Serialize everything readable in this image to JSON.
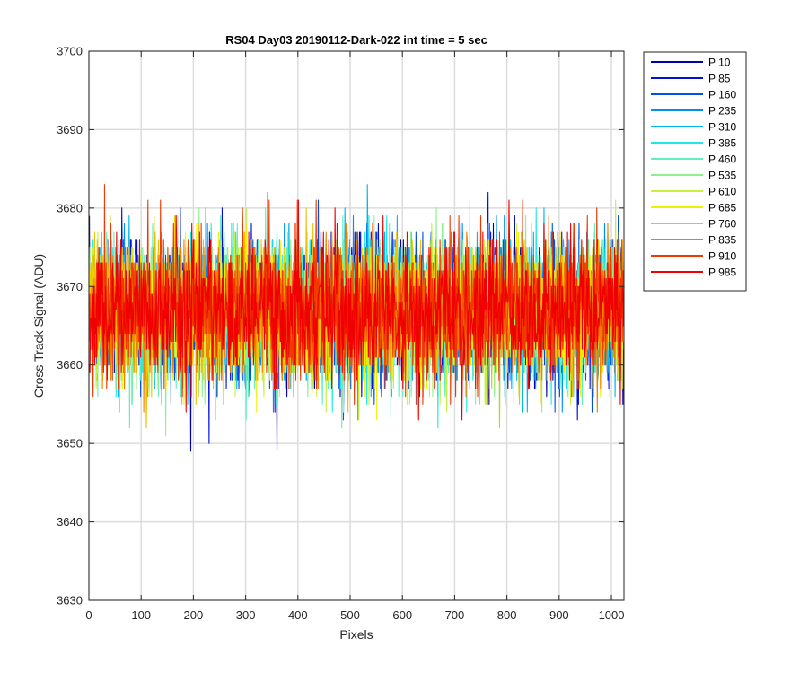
{
  "chart_data": {
    "type": "line",
    "title": "RS04 Day03 20190112-Dark-022 int time = 5 sec",
    "xlabel": "Pixels",
    "ylabel": "Cross Track Signal (ADU)",
    "xlim": [
      0,
      1024
    ],
    "ylim": [
      3630,
      3700
    ],
    "xticks": [
      "0",
      "100",
      "200",
      "300",
      "400",
      "500",
      "600",
      "700",
      "800",
      "900",
      "1000"
    ],
    "yticks": [
      "3630",
      "3640",
      "3650",
      "3660",
      "3670",
      "3680",
      "3690",
      "3700"
    ],
    "grid": true,
    "legend_position": "outside-right-top",
    "series": [
      {
        "name": "P 10",
        "color": "#0000a8",
        "mean": 3667,
        "spread": 7
      },
      {
        "name": "P 85",
        "color": "#0010d8",
        "mean": 3667,
        "spread": 7
      },
      {
        "name": "P 160",
        "color": "#0050e8",
        "mean": 3667,
        "spread": 7
      },
      {
        "name": "P 235",
        "color": "#0090f0",
        "mean": 3667,
        "spread": 7
      },
      {
        "name": "P 310",
        "color": "#00b8f0",
        "mean": 3667,
        "spread": 7
      },
      {
        "name": "P 385",
        "color": "#20e8e8",
        "mean": 3667,
        "spread": 7
      },
      {
        "name": "P 460",
        "color": "#60f0c0",
        "mean": 3667,
        "spread": 7
      },
      {
        "name": "P 535",
        "color": "#90f090",
        "mean": 3667,
        "spread": 7
      },
      {
        "name": "P 610",
        "color": "#c8f040",
        "mean": 3667,
        "spread": 7
      },
      {
        "name": "P 685",
        "color": "#f0f000",
        "mean": 3667,
        "spread": 7
      },
      {
        "name": "P 760",
        "color": "#f0c000",
        "mean": 3667,
        "spread": 7
      },
      {
        "name": "P 835",
        "color": "#f08000",
        "mean": 3667,
        "spread": 7
      },
      {
        "name": "P 910",
        "color": "#f03800",
        "mean": 3667,
        "spread": 7
      },
      {
        "name": "P 985",
        "color": "#f00000",
        "mean": 3667,
        "spread": 7
      }
    ]
  }
}
